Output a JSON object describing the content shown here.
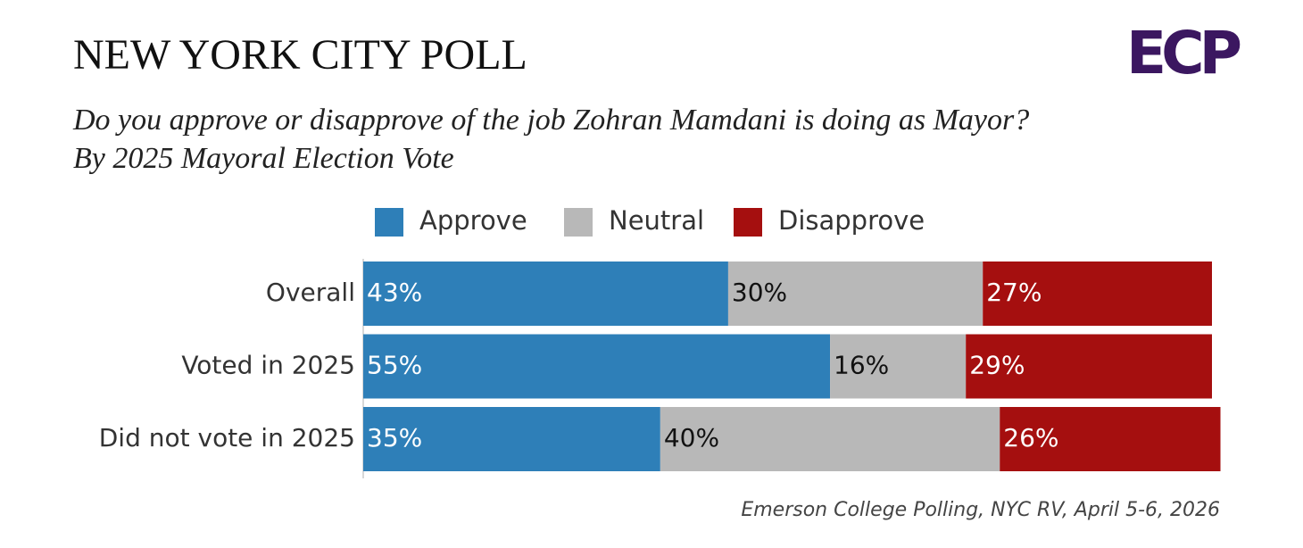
{
  "chart_data": {
    "type": "stacked-bar-horizontal",
    "title": "NEW YORK CITY POLL",
    "subtitle": [
      "Do you approve or disapprove of the job Zohran Mamdani is doing as Mayor?",
      "By 2025 Mayoral Election Vote"
    ],
    "logo": "ECP",
    "source": "Emerson College Polling, NYC RV, April 5-6, 2026",
    "categories": [
      "Overall",
      "Voted in 2025",
      "Did not vote in 2025"
    ],
    "series": [
      {
        "name": "Approve",
        "color": "#2e7fb8",
        "values": [
          43,
          55,
          35
        ],
        "value_labels": [
          "43%",
          "55%",
          "35%"
        ]
      },
      {
        "name": "Neutral",
        "color": "#b8b8b8",
        "values": [
          30,
          16,
          40
        ],
        "value_labels": [
          "30%",
          "16%",
          "40%"
        ]
      },
      {
        "name": "Disapprove",
        "color": "#a50f0f",
        "values": [
          27,
          29,
          26
        ],
        "value_labels": [
          "27%",
          "29%",
          "26%"
        ]
      }
    ],
    "xlim": [
      0,
      100
    ],
    "legend": "top"
  }
}
